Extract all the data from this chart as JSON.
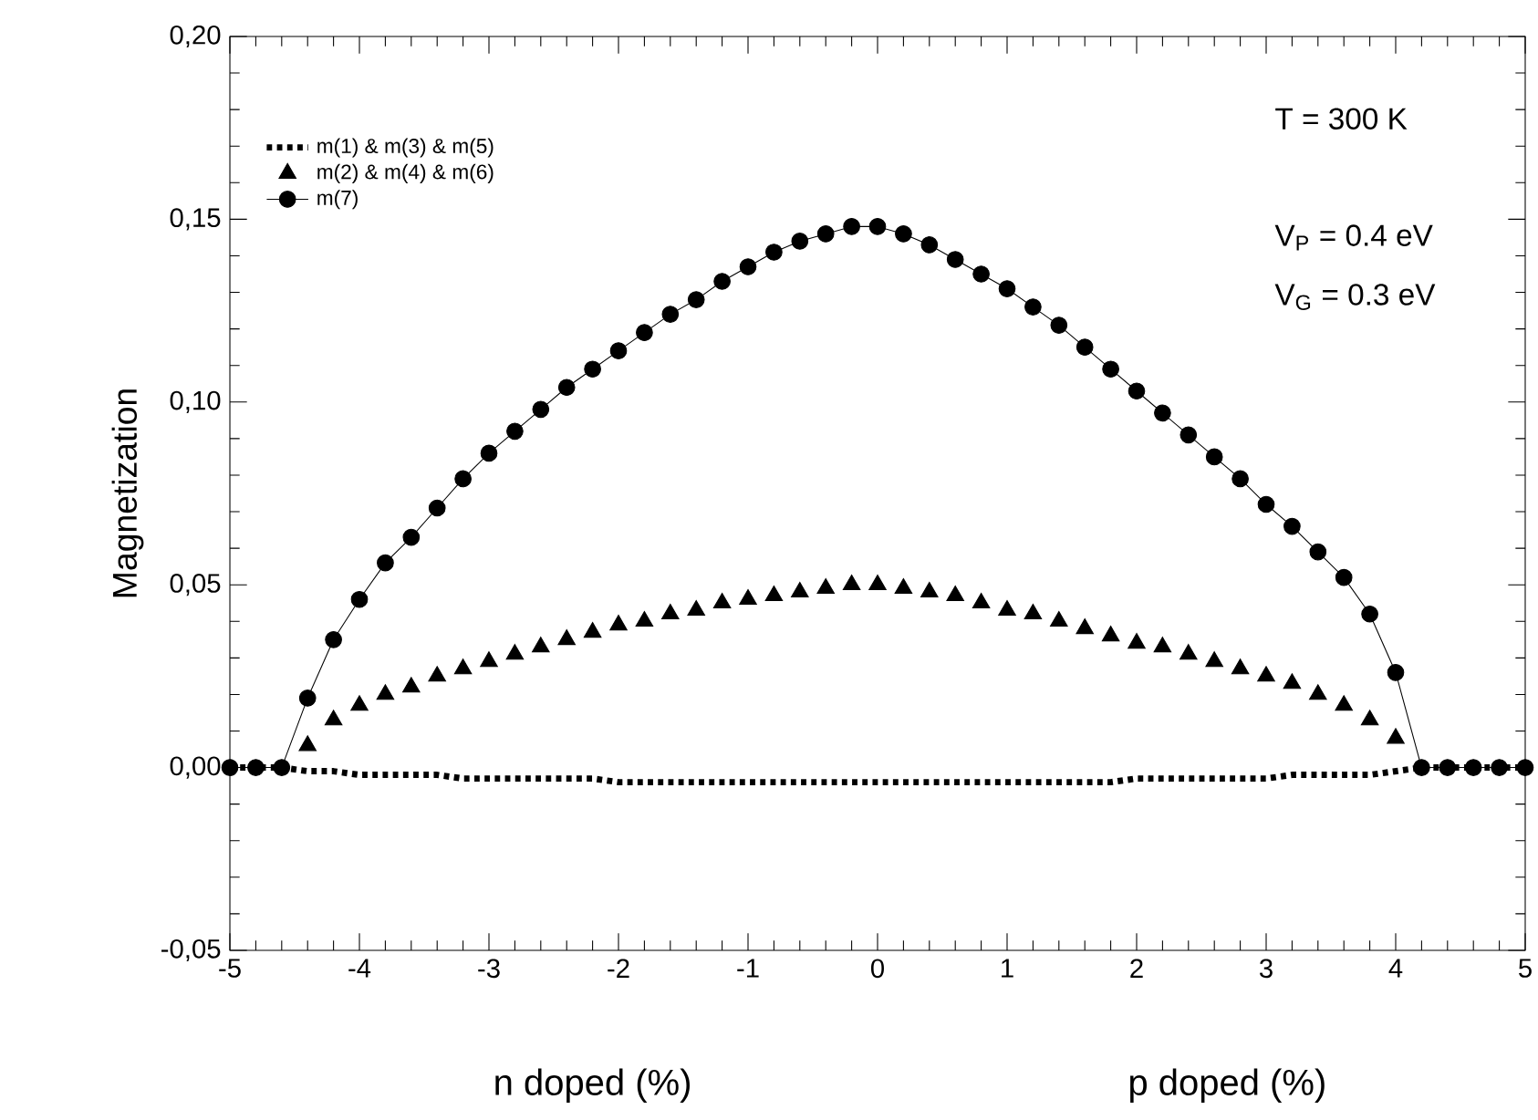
{
  "chart_data": {
    "type": "line",
    "ylabel": "Magnetization",
    "annotations": [
      "T = 300 K",
      "V$_{P}$ = 0.4 eV",
      "V$_{G}$ = 0.3 eV",
      "n doped (%)",
      "p doped (%)"
    ],
    "x": [
      -5,
      -4.8,
      -4.6,
      -4.4,
      -4.2,
      -4,
      -3.8,
      -3.6,
      -3.4,
      -3.2,
      -3,
      -2.8,
      -2.6,
      -2.4,
      -2.2,
      -2,
      -1.8,
      -1.6,
      -1.4,
      -1.2,
      -1,
      -0.8,
      -0.6,
      -0.4,
      -0.2,
      0,
      0.2,
      0.4,
      0.6,
      0.8,
      1,
      1.2,
      1.4,
      1.6,
      1.8,
      2,
      2.2,
      2.4,
      2.6,
      2.8,
      3,
      3.2,
      3.4,
      3.6,
      3.8,
      4,
      4.2,
      4.4,
      4.6,
      4.8,
      5
    ],
    "series": [
      {
        "name": "m(1) & m(3) & m(5)",
        "color": "#000000",
        "line_style": "dotted",
        "marker": "none",
        "values": [
          0,
          0,
          0,
          -0.001,
          -0.001,
          -0.002,
          -0.002,
          -0.002,
          -0.002,
          -0.003,
          -0.003,
          -0.003,
          -0.003,
          -0.003,
          -0.003,
          -0.004,
          -0.004,
          -0.004,
          -0.004,
          -0.004,
          -0.004,
          -0.004,
          -0.004,
          -0.004,
          -0.004,
          -0.004,
          -0.004,
          -0.004,
          -0.004,
          -0.004,
          -0.004,
          -0.004,
          -0.004,
          -0.004,
          -0.004,
          -0.003,
          -0.003,
          -0.003,
          -0.003,
          -0.003,
          -0.003,
          -0.002,
          -0.002,
          -0.002,
          -0.002,
          -0.001,
          0,
          0,
          0,
          0,
          0
        ]
      },
      {
        "name": "m(2) & m(4) & m(6)",
        "color": "#000000",
        "type": "scatter",
        "marker": "triangle",
        "values": [
          null,
          null,
          null,
          0.006,
          0.013,
          0.017,
          0.02,
          0.022,
          0.025,
          0.027,
          0.029,
          0.031,
          0.033,
          0.035,
          0.037,
          0.039,
          0.04,
          0.042,
          0.043,
          0.045,
          0.046,
          0.047,
          0.048,
          0.049,
          0.05,
          0.05,
          0.049,
          0.048,
          0.047,
          0.045,
          0.043,
          0.042,
          0.04,
          0.038,
          0.036,
          0.034,
          0.033,
          0.031,
          0.029,
          0.027,
          0.025,
          0.023,
          0.02,
          0.017,
          0.013,
          0.008,
          null,
          null,
          null,
          null,
          null
        ]
      },
      {
        "name": "m(7)",
        "color": "#000000",
        "line_style": "solid",
        "marker": "circle",
        "values": [
          0,
          0,
          0,
          0.019,
          0.035,
          0.046,
          0.056,
          0.063,
          0.071,
          0.079,
          0.086,
          0.092,
          0.098,
          0.104,
          0.109,
          0.114,
          0.119,
          0.124,
          0.128,
          0.133,
          0.137,
          0.141,
          0.144,
          0.146,
          0.148,
          0.148,
          0.146,
          0.143,
          0.139,
          0.135,
          0.131,
          0.126,
          0.121,
          0.115,
          0.109,
          0.103,
          0.097,
          0.091,
          0.085,
          0.079,
          0.072,
          0.066,
          0.059,
          0.052,
          0.042,
          0.026,
          0,
          0,
          0,
          0,
          0
        ]
      }
    ],
    "xlim": [
      -5,
      5
    ],
    "xticks": [
      -5,
      -4,
      -3,
      -2,
      -1,
      0,
      1,
      2,
      3,
      4,
      5
    ],
    "ylim": [
      -0.05,
      0.2
    ],
    "yticks": [
      {
        "value": -0.05,
        "label": "-0,05"
      },
      {
        "value": 0,
        "label": "0,00"
      },
      {
        "value": 0.05,
        "label": "0,05"
      },
      {
        "value": 0.1,
        "label": "0,10"
      },
      {
        "value": 0.15,
        "label": "0,15"
      },
      {
        "value": 0.2,
        "label": "0,20"
      }
    ],
    "grid": false,
    "legend": "top left"
  }
}
